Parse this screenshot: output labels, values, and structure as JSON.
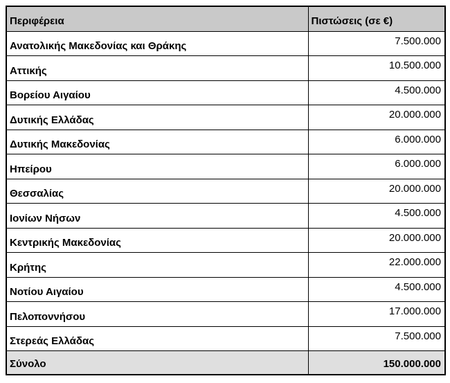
{
  "table": {
    "headers": {
      "region": "Περιφέρεια",
      "credits": "Πιστώσεις (σε €)"
    },
    "rows": [
      {
        "region": "Ανατολικής Μακεδονίας και Θράκης",
        "credits": "7.500.000"
      },
      {
        "region": "Αττικής",
        "credits": "10.500.000"
      },
      {
        "region": "Βορείου Αιγαίου",
        "credits": "4.500.000"
      },
      {
        "region": "Δυτικής Ελλάδας",
        "credits": "20.000.000"
      },
      {
        "region": "Δυτικής Μακεδονίας",
        "credits": "6.000.000"
      },
      {
        "region": "Ηπείρου",
        "credits": "6.000.000"
      },
      {
        "region": "Θεσσαλίας",
        "credits": "20.000.000"
      },
      {
        "region": "Ιονίων Νήσων",
        "credits": "4.500.000"
      },
      {
        "region": "Κεντρικής Μακεδονίας",
        "credits": "20.000.000"
      },
      {
        "region": "Κρήτης",
        "credits": "22.000.000"
      },
      {
        "region": "Νοτίου Αιγαίου",
        "credits": "4.500.000"
      },
      {
        "region": "Πελοποννήσου",
        "credits": "17.000.000"
      },
      {
        "region": "Στερεάς Ελλάδας",
        "credits": "7.500.000"
      }
    ],
    "total": {
      "label": "Σύνολο",
      "value": "150.000.000"
    }
  },
  "colors": {
    "header_bg": "#c9c9c9",
    "total_bg": "#dfdfdf",
    "border": "#000000",
    "page_bg": "#ffffff"
  }
}
